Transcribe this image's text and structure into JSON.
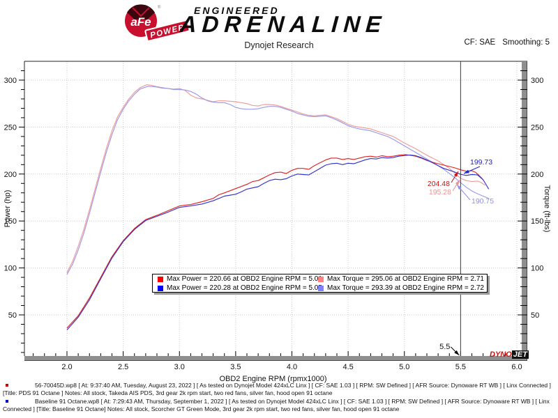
{
  "header": {
    "logo": {
      "circle": "aFe",
      "banner": "POWER",
      "reg": "®"
    },
    "brand_line1": "ENGINEERED",
    "brand_line2": "ADRENALINE",
    "subtitle": "Dynojet Research",
    "cf": "CF: SAE",
    "smoothing": "Smoothing: 5"
  },
  "chart_data": {
    "type": "line",
    "xlabel": "OBD2 Engine RPM (rpmx1000)",
    "ylabel_left": "Power (hp)",
    "ylabel_right": "Torque (ft-lbs)",
    "xlim": [
      1.62,
      6.05
    ],
    "ylim": [
      5,
      320
    ],
    "x_ticks": [
      2.0,
      2.5,
      3.0,
      3.5,
      4.0,
      4.5,
      5.0,
      5.5,
      6.0
    ],
    "y_ticks": [
      50,
      100,
      150,
      200,
      250,
      300
    ],
    "grid": "dotted",
    "legend_position": "center",
    "cursor": {
      "x": 5.5,
      "label": "5.5"
    },
    "series": [
      {
        "name": "Torque PDS 91 Octane",
        "unit": "ft-lbs",
        "color": "#f09a9a",
        "points": [
          [
            2.0,
            95
          ],
          [
            2.05,
            107
          ],
          [
            2.1,
            123
          ],
          [
            2.15,
            141
          ],
          [
            2.2,
            162
          ],
          [
            2.25,
            184
          ],
          [
            2.3,
            206
          ],
          [
            2.35,
            227
          ],
          [
            2.4,
            246
          ],
          [
            2.45,
            261
          ],
          [
            2.5,
            271
          ],
          [
            2.55,
            280
          ],
          [
            2.6,
            287
          ],
          [
            2.65,
            292
          ],
          [
            2.71,
            295.1
          ],
          [
            2.75,
            294.5
          ],
          [
            2.8,
            293
          ],
          [
            2.85,
            292
          ],
          [
            2.9,
            291
          ],
          [
            2.95,
            290.5
          ],
          [
            3.0,
            291
          ],
          [
            3.05,
            289
          ],
          [
            3.1,
            284
          ],
          [
            3.15,
            281
          ],
          [
            3.2,
            280
          ],
          [
            3.25,
            278.5
          ],
          [
            3.3,
            277
          ],
          [
            3.35,
            278
          ],
          [
            3.4,
            278
          ],
          [
            3.5,
            277
          ],
          [
            3.55,
            276
          ],
          [
            3.6,
            275
          ],
          [
            3.65,
            273
          ],
          [
            3.7,
            272.5
          ],
          [
            3.75,
            274
          ],
          [
            3.8,
            274
          ],
          [
            3.85,
            273.5
          ],
          [
            3.9,
            272
          ],
          [
            3.95,
            270
          ],
          [
            4.0,
            268
          ],
          [
            4.05,
            266
          ],
          [
            4.1,
            264
          ],
          [
            4.15,
            262.5
          ],
          [
            4.2,
            262
          ],
          [
            4.25,
            262.5
          ],
          [
            4.3,
            263
          ],
          [
            4.35,
            261
          ],
          [
            4.4,
            259
          ],
          [
            4.45,
            256
          ],
          [
            4.5,
            253
          ],
          [
            4.55,
            251
          ],
          [
            4.6,
            250
          ],
          [
            4.65,
            249
          ],
          [
            4.7,
            248
          ],
          [
            4.75,
            246
          ],
          [
            4.8,
            244
          ],
          [
            4.85,
            242
          ],
          [
            4.9,
            240
          ],
          [
            4.95,
            236.5
          ],
          [
            5.0,
            233
          ],
          [
            5.05,
            230
          ],
          [
            5.1,
            227
          ],
          [
            5.15,
            223.5
          ],
          [
            5.2,
            220
          ],
          [
            5.25,
            217
          ],
          [
            5.3,
            214
          ],
          [
            5.35,
            210
          ],
          [
            5.4,
            206
          ],
          [
            5.45,
            201
          ],
          [
            5.5,
            195.3
          ],
          [
            5.55,
            193
          ],
          [
            5.6,
            192
          ],
          [
            5.65,
            192.5
          ],
          [
            5.68,
            191
          ],
          [
            5.72,
            188
          ]
        ]
      },
      {
        "name": "Torque Baseline 91 Octane",
        "unit": "ft-lbs",
        "color": "#9a9aec",
        "points": [
          [
            2.0,
            93
          ],
          [
            2.05,
            104
          ],
          [
            2.1,
            119
          ],
          [
            2.15,
            137
          ],
          [
            2.2,
            158
          ],
          [
            2.25,
            180
          ],
          [
            2.3,
            202
          ],
          [
            2.35,
            223
          ],
          [
            2.4,
            242
          ],
          [
            2.45,
            258
          ],
          [
            2.5,
            269
          ],
          [
            2.55,
            278
          ],
          [
            2.6,
            285
          ],
          [
            2.65,
            290.5
          ],
          [
            2.72,
            293.4
          ],
          [
            2.78,
            293
          ],
          [
            2.85,
            291.5
          ],
          [
            2.9,
            291
          ],
          [
            2.95,
            290
          ],
          [
            3.0,
            290
          ],
          [
            3.05,
            289.5
          ],
          [
            3.1,
            288
          ],
          [
            3.15,
            285
          ],
          [
            3.2,
            281
          ],
          [
            3.25,
            278
          ],
          [
            3.3,
            276.5
          ],
          [
            3.35,
            276
          ],
          [
            3.4,
            276
          ],
          [
            3.45,
            274
          ],
          [
            3.5,
            271
          ],
          [
            3.55,
            269.5
          ],
          [
            3.6,
            269
          ],
          [
            3.65,
            269
          ],
          [
            3.7,
            269.5
          ],
          [
            3.75,
            271
          ],
          [
            3.8,
            272
          ],
          [
            3.85,
            272
          ],
          [
            3.9,
            271
          ],
          [
            3.95,
            269
          ],
          [
            4.0,
            267
          ],
          [
            4.05,
            264.5
          ],
          [
            4.1,
            263
          ],
          [
            4.15,
            261.5
          ],
          [
            4.2,
            261
          ],
          [
            4.25,
            261.5
          ],
          [
            4.3,
            262
          ],
          [
            4.35,
            260
          ],
          [
            4.4,
            257.5
          ],
          [
            4.45,
            254.5
          ],
          [
            4.5,
            251.5
          ],
          [
            4.55,
            249.5
          ],
          [
            4.6,
            248
          ],
          [
            4.65,
            247
          ],
          [
            4.7,
            246
          ],
          [
            4.75,
            244
          ],
          [
            4.8,
            242
          ],
          [
            4.85,
            240
          ],
          [
            4.9,
            237
          ],
          [
            4.95,
            233.5
          ],
          [
            5.0,
            230
          ],
          [
            5.05,
            226.5
          ],
          [
            5.1,
            223
          ],
          [
            5.15,
            219.5
          ],
          [
            5.2,
            216
          ],
          [
            5.25,
            212.5
          ],
          [
            5.3,
            209
          ],
          [
            5.35,
            205
          ],
          [
            5.4,
            200.5
          ],
          [
            5.45,
            196
          ],
          [
            5.5,
            190.8
          ],
          [
            5.55,
            186
          ],
          [
            5.6,
            182
          ],
          [
            5.65,
            179
          ],
          [
            5.7,
            176.5
          ],
          [
            5.75,
            174
          ]
        ]
      },
      {
        "name": "Power PDS 91 Octane",
        "unit": "hp",
        "color": "#dd2222",
        "points": [
          [
            2.0,
            36
          ],
          [
            2.1,
            49
          ],
          [
            2.2,
            68
          ],
          [
            2.3,
            90
          ],
          [
            2.4,
            112
          ],
          [
            2.5,
            129
          ],
          [
            2.6,
            142
          ],
          [
            2.7,
            151.5
          ],
          [
            2.8,
            156
          ],
          [
            2.9,
            161
          ],
          [
            3.0,
            166
          ],
          [
            3.1,
            167.5
          ],
          [
            3.2,
            170.5
          ],
          [
            3.3,
            174
          ],
          [
            3.35,
            178
          ],
          [
            3.4,
            180
          ],
          [
            3.5,
            184.5
          ],
          [
            3.6,
            189
          ],
          [
            3.65,
            192
          ],
          [
            3.7,
            193
          ],
          [
            3.75,
            196
          ],
          [
            3.8,
            199
          ],
          [
            3.85,
            201.5
          ],
          [
            3.9,
            202
          ],
          [
            3.95,
            200.5
          ],
          [
            4.0,
            204
          ],
          [
            4.05,
            206
          ],
          [
            4.1,
            206
          ],
          [
            4.15,
            205
          ],
          [
            4.2,
            209
          ],
          [
            4.25,
            212
          ],
          [
            4.3,
            215
          ],
          [
            4.35,
            217
          ],
          [
            4.4,
            217
          ],
          [
            4.45,
            215.5
          ],
          [
            4.5,
            216.5
          ],
          [
            4.55,
            215.5
          ],
          [
            4.6,
            217
          ],
          [
            4.65,
            218.5
          ],
          [
            4.7,
            219
          ],
          [
            4.75,
            218
          ],
          [
            4.8,
            219.5
          ],
          [
            4.85,
            218.5
          ],
          [
            4.9,
            219
          ],
          [
            4.95,
            220
          ],
          [
            5.01,
            220.7
          ],
          [
            5.05,
            220
          ],
          [
            5.1,
            219
          ],
          [
            5.15,
            217
          ],
          [
            5.2,
            214.5
          ],
          [
            5.25,
            212.5
          ],
          [
            5.3,
            211
          ],
          [
            5.35,
            209.5
          ],
          [
            5.4,
            208
          ],
          [
            5.45,
            206.5
          ],
          [
            5.5,
            204.5
          ],
          [
            5.55,
            203
          ],
          [
            5.6,
            203.5
          ],
          [
            5.63,
            202
          ],
          [
            5.66,
            199
          ],
          [
            5.7,
            194
          ]
        ]
      },
      {
        "name": "Power Baseline 91 Octane",
        "unit": "hp",
        "color": "#3333cc",
        "points": [
          [
            2.0,
            34
          ],
          [
            2.1,
            47.5
          ],
          [
            2.2,
            66
          ],
          [
            2.3,
            88.5
          ],
          [
            2.4,
            110.5
          ],
          [
            2.5,
            128
          ],
          [
            2.6,
            141
          ],
          [
            2.7,
            150.5
          ],
          [
            2.8,
            155
          ],
          [
            2.9,
            159.5
          ],
          [
            3.0,
            164.5
          ],
          [
            3.1,
            166
          ],
          [
            3.2,
            168
          ],
          [
            3.3,
            171.5
          ],
          [
            3.4,
            176.5
          ],
          [
            3.5,
            178.5
          ],
          [
            3.55,
            181
          ],
          [
            3.6,
            184
          ],
          [
            3.7,
            186.5
          ],
          [
            3.75,
            190
          ],
          [
            3.8,
            193
          ],
          [
            3.85,
            194.5
          ],
          [
            3.9,
            194
          ],
          [
            3.95,
            195
          ],
          [
            4.0,
            198
          ],
          [
            4.05,
            200
          ],
          [
            4.1,
            199.5
          ],
          [
            4.15,
            199
          ],
          [
            4.2,
            202.5
          ],
          [
            4.25,
            206
          ],
          [
            4.3,
            209.5
          ],
          [
            4.35,
            211
          ],
          [
            4.4,
            211.5
          ],
          [
            4.45,
            210
          ],
          [
            4.5,
            211.5
          ],
          [
            4.55,
            211
          ],
          [
            4.6,
            213
          ],
          [
            4.65,
            215
          ],
          [
            4.7,
            216.5
          ],
          [
            4.75,
            216
          ],
          [
            4.8,
            217.5
          ],
          [
            4.85,
            217
          ],
          [
            4.9,
            217.5
          ],
          [
            4.95,
            219
          ],
          [
            5.05,
            220.3
          ],
          [
            5.1,
            219.5
          ],
          [
            5.15,
            217.5
          ],
          [
            5.2,
            215
          ],
          [
            5.25,
            212
          ],
          [
            5.3,
            209
          ],
          [
            5.35,
            206
          ],
          [
            5.4,
            204
          ],
          [
            5.45,
            202
          ],
          [
            5.5,
            199.7
          ],
          [
            5.55,
            198.5
          ],
          [
            5.6,
            199.5
          ],
          [
            5.65,
            199
          ],
          [
            5.7,
            194
          ],
          [
            5.73,
            188
          ],
          [
            5.75,
            184
          ]
        ]
      }
    ],
    "annotations": [
      {
        "text": "199.73",
        "color": "#2222cc",
        "label": [
          674,
          236
        ],
        "anchor": "start",
        "from": [
          688,
          239
        ],
        "to": [
          665,
          249
        ]
      },
      {
        "text": "204.48",
        "color": "#cc1111",
        "label": [
          645,
          267
        ],
        "anchor": "end",
        "from": [
          647,
          262
        ],
        "to": [
          657,
          246
        ]
      },
      {
        "text": "195.28",
        "color": "#f09090",
        "label": [
          647,
          279
        ],
        "anchor": "end",
        "from": [
          649,
          274
        ],
        "to": [
          659,
          258
        ]
      },
      {
        "text": "190.75",
        "color": "#9090e8",
        "label": [
          676,
          292
        ],
        "anchor": "start",
        "from": [
          674,
          287
        ],
        "to": [
          655,
          265
        ]
      }
    ]
  },
  "legend": {
    "items": [
      {
        "color": "#ff0000",
        "label": "Max Power = 220.66 at OBD2 Engine RPM = 5.01"
      },
      {
        "color": "#ff8080",
        "label": "Max Torque = 295.06 at OBD2 Engine RPM = 2.71"
      },
      {
        "color": "#0000ff",
        "label": "Max Power = 220.28 at OBD2 Engine RPM = 5.05"
      },
      {
        "color": "#8080ff",
        "label": "Max Torque = 293.39 at OBD2 Engine RPM = 2.72"
      }
    ]
  },
  "watermark": {
    "part1": "DYNO",
    "part2": "JET"
  },
  "footer": {
    "runs": [
      {
        "bullet_color": "#cc0000",
        "text": "56-70045D.wp8 [ At: 9:37:40 AM, Tuesday, August 23, 2022 ] [ As tested on Dynojet Model 424xLC Linx ] [ CF: SAE 1.03 ] [ RPM: SW Defined ] [ AFR Source: Dynoware RT WB ] [ Linx Connected ] [Title: PDS 91 Octane ]  Notes: All stock, Takeda AIS PDS, 3rd gear 2k rpm start, two red fans, silver fan, hood open 91 octane"
      },
      {
        "bullet_color": "#0000cc",
        "text": "Baseline 91 Octane.wp8 [ At: 7:29:43 AM, Thursday, September 1, 2022 ] [ As tested on Dynojet Model 424xLC Linx ] [ CF: SAE 1.03 ] [ RPM: SW Defined ] [ AFR Source: Dynoware RT WB ] [ Linx Connected ] [Title: Baseline 91 Octane]  Notes: All stock, Scorcher GT Green Mode, 3rd gear 2k rpm start, two red fans, silver fan, hood open 91 octane"
      }
    ]
  }
}
